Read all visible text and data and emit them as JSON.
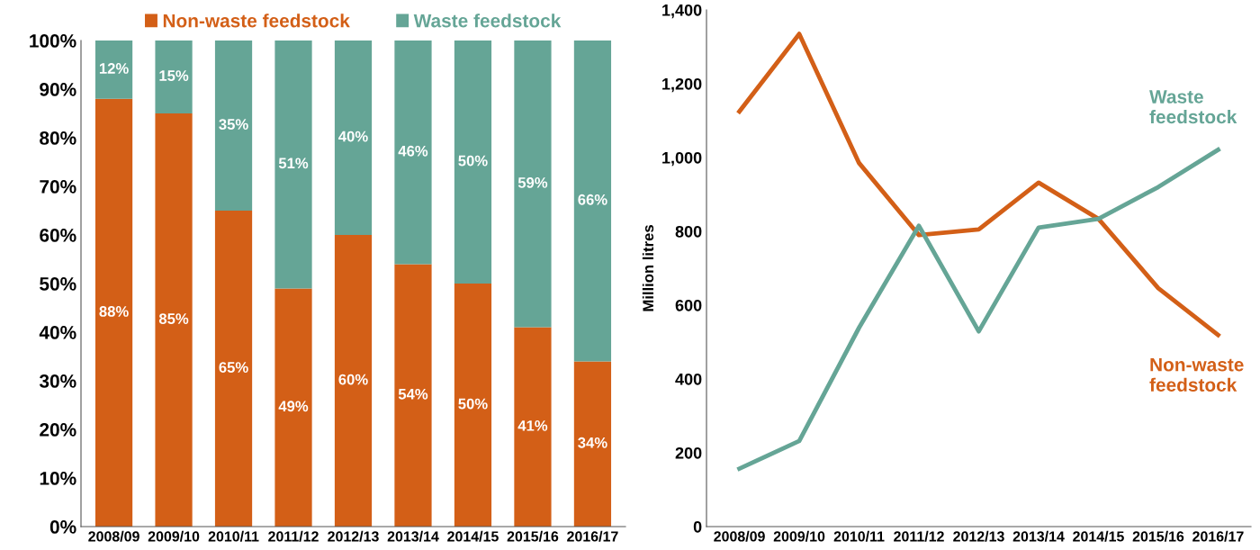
{
  "chart_data": [
    {
      "type": "bar",
      "stacked": true,
      "legend": "top",
      "categories": [
        "2008/09",
        "2009/10",
        "2010/11",
        "2011/12",
        "2012/13",
        "2013/14",
        "2014/15",
        "2015/16",
        "2016/17"
      ],
      "series": [
        {
          "name": "Non-waste feedstock",
          "color": "#d35f17",
          "values": [
            88,
            85,
            65,
            49,
            60,
            54,
            50,
            41,
            34
          ],
          "value_labels": [
            "88%",
            "85%",
            "65%",
            "49%",
            "60%",
            "54%",
            "50%",
            "41%",
            "34%"
          ]
        },
        {
          "name": "Waste feedstock",
          "color": "#65a596",
          "values": [
            12,
            15,
            35,
            51,
            40,
            46,
            50,
            59,
            66
          ],
          "value_labels": [
            "12%",
            "15%",
            "35%",
            "51%",
            "40%",
            "46%",
            "50%",
            "59%",
            "66%"
          ]
        }
      ],
      "ylim": [
        0,
        100
      ],
      "yticks": [
        {
          "value": 0,
          "label": "0%"
        },
        {
          "value": 10,
          "label": "10%"
        },
        {
          "value": 20,
          "label": "20%"
        },
        {
          "value": 30,
          "label": "30%"
        },
        {
          "value": 40,
          "label": "40%"
        },
        {
          "value": 50,
          "label": "50%"
        },
        {
          "value": 60,
          "label": "60%"
        },
        {
          "value": 70,
          "label": "70%"
        },
        {
          "value": 80,
          "label": "80%"
        },
        {
          "value": 90,
          "label": "90%"
        },
        {
          "value": 100,
          "label": "100%"
        }
      ],
      "grid": false
    },
    {
      "type": "line",
      "legend": false,
      "ylabel": "Million litres",
      "categories": [
        "2008/09",
        "2009/10",
        "2010/11",
        "2011/12",
        "2012/13",
        "2013/14",
        "2014/15",
        "2015/16",
        "2016/17"
      ],
      "series": [
        {
          "name": "Non-waste feedstock",
          "color": "#d35f17",
          "values": [
            1125,
            1335,
            985,
            790,
            805,
            932,
            834,
            646,
            519
          ]
        },
        {
          "name": "Waste feedstock",
          "color": "#65a596",
          "values": [
            157,
            232,
            539,
            815,
            529,
            810,
            834,
            920,
            1021
          ]
        }
      ],
      "ylim": [
        0,
        1400
      ],
      "yticks": [
        0,
        200,
        400,
        600,
        800,
        {
          "value": 1000,
          "label": "1,000"
        },
        {
          "value": 1200,
          "label": "1,200"
        },
        {
          "value": 1400,
          "label": "1,400"
        }
      ],
      "grid": false,
      "marker": "none",
      "line_style": "solid"
    }
  ]
}
